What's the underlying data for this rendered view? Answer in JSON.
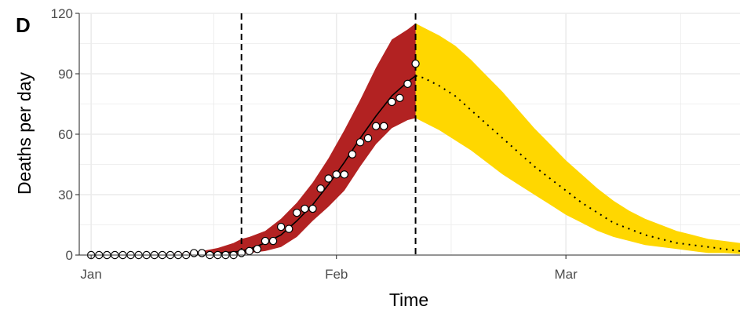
{
  "panel_label": "D",
  "chart_data": {
    "type": "line",
    "title": "",
    "xlabel": "Time",
    "ylabel": "Deaths per day",
    "ylim": [
      0,
      120
    ],
    "yticks": [
      0,
      30,
      60,
      90,
      120
    ],
    "xlim_days": [
      -1.5,
      82
    ],
    "xticks": [
      {
        "label": "Jan",
        "date": "2020-01-01",
        "day": 0
      },
      {
        "label": "Feb",
        "date": "2020-02-01",
        "day": 31
      },
      {
        "label": "Mar",
        "date": "2020-03-01",
        "day": 60
      }
    ],
    "grid": true,
    "vlines_day": [
      19,
      41
    ],
    "colors": {
      "fit_band": "#b22222",
      "forecast_band": "#ffd700",
      "line": "#000000",
      "points_fill": "#ffffff",
      "points_edge": "#000000",
      "grid": "#ebebeb"
    },
    "observed": {
      "day": [
        0,
        1,
        2,
        3,
        4,
        5,
        6,
        7,
        8,
        9,
        10,
        11,
        12,
        13,
        14,
        15,
        16,
        17,
        18,
        19,
        20,
        21,
        22,
        23,
        24,
        25,
        26,
        27,
        28,
        29,
        30,
        31,
        32,
        33,
        34,
        35,
        36,
        37,
        38,
        39,
        40,
        41
      ],
      "deaths": [
        0,
        0,
        0,
        0,
        0,
        0,
        0,
        0,
        0,
        0,
        0,
        0,
        0,
        1,
        1,
        0,
        0,
        0,
        0,
        1,
        2,
        3,
        7,
        7,
        14,
        13,
        21,
        23,
        23,
        33,
        38,
        40,
        40,
        50,
        56,
        58,
        64,
        64,
        76,
        78,
        85,
        95
      ]
    },
    "fit": {
      "day": [
        0,
        4,
        8,
        12,
        14,
        16,
        18,
        19,
        20,
        22,
        24,
        26,
        28,
        30,
        32,
        34,
        36,
        38,
        40,
        41
      ],
      "median": [
        0,
        0,
        0,
        0,
        0.5,
        1,
        1.5,
        2,
        3,
        6,
        10,
        17,
        25,
        35,
        46,
        58,
        69,
        79,
        86,
        89
      ],
      "lower": [
        0,
        0,
        0,
        0,
        0,
        0,
        0,
        0.3,
        1,
        2,
        4,
        9,
        17,
        24,
        32,
        44,
        55,
        63,
        67,
        68
      ],
      "upper": [
        0,
        0,
        0.5,
        1,
        2,
        3.5,
        6,
        8,
        9,
        12,
        18,
        26,
        36,
        48,
        62,
        77,
        93,
        107,
        112,
        115
      ]
    },
    "forecast": {
      "day": [
        41,
        42,
        44,
        46,
        48,
        50,
        52,
        54,
        56,
        58,
        60,
        62,
        64,
        66,
        68,
        70,
        72,
        74,
        76,
        78,
        80,
        82
      ],
      "median": [
        89,
        88,
        84,
        79,
        72,
        65,
        58,
        51,
        44,
        38,
        32,
        26,
        21,
        16,
        13,
        10,
        8,
        6,
        5,
        4,
        3,
        2
      ],
      "lower": [
        68,
        66,
        62,
        57,
        52,
        46,
        40,
        35,
        30,
        25,
        20,
        16,
        12,
        9,
        7,
        5,
        4,
        3,
        2,
        1,
        1,
        0.5
      ],
      "upper": [
        115,
        113,
        109,
        104,
        97,
        89,
        81,
        72,
        63,
        55,
        47,
        40,
        33,
        27,
        22,
        18,
        15,
        12,
        10,
        8,
        7,
        6
      ]
    }
  }
}
